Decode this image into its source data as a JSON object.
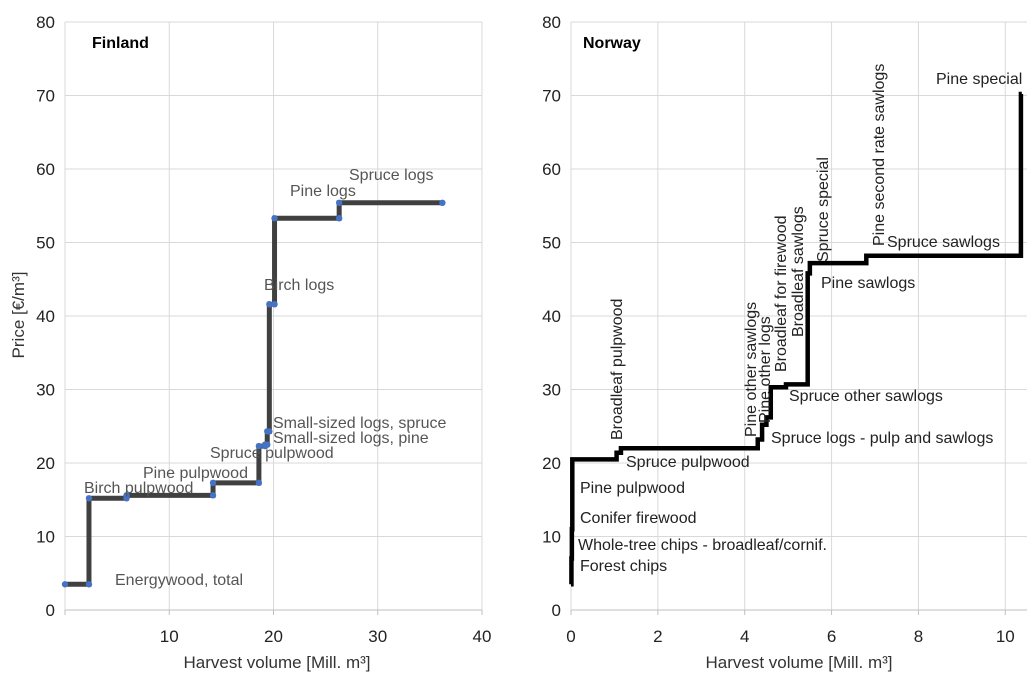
{
  "chart_data": [
    {
      "type": "line",
      "step": true,
      "title": "Finland",
      "xlabel": "Harvest volume [Mill. m³]",
      "ylabel": "Price [€/m³]",
      "xlim": [
        0,
        40
      ],
      "ylim": [
        0,
        80
      ],
      "xticks": [
        0,
        10,
        20,
        30,
        40
      ],
      "xtick_labels": [
        "",
        "10",
        "20",
        "30",
        "40"
      ],
      "yticks": [
        0,
        10,
        20,
        30,
        40,
        50,
        60,
        70,
        80
      ],
      "grid": true,
      "line_color": "#404040",
      "marker_color": "#4472c4",
      "steps": [
        {
          "label": "Energywood, total",
          "x0": 0.0,
          "x1": 2.3,
          "y": 3.5
        },
        {
          "label": "Birch pulpwood",
          "x0": 2.3,
          "x1": 5.9,
          "y": 15.2
        },
        {
          "label": "",
          "x0": 5.9,
          "x1": 14.2,
          "y": 15.6
        },
        {
          "label": "Pine pulpwood",
          "x0": 14.2,
          "x1": 18.6,
          "y": 17.3
        },
        {
          "label": "Spruce pulpwood",
          "x0": 18.6,
          "x1": 19.2,
          "y": 22.3
        },
        {
          "label": "Small-sized logs, pine",
          "x0": 19.2,
          "x1": 19.4,
          "y": 22.5
        },
        {
          "label": "Small-sized logs, spruce",
          "x0": 19.4,
          "x1": 19.6,
          "y": 24.3
        },
        {
          "label": "Birch logs",
          "x0": 19.6,
          "x1": 20.1,
          "y": 41.6
        },
        {
          "label": "Pine logs",
          "x0": 20.1,
          "x1": 26.3,
          "y": 53.3
        },
        {
          "label": "Spruce logs",
          "x0": 26.3,
          "x1": 36.2,
          "y": 55.4
        }
      ]
    },
    {
      "type": "line",
      "step": true,
      "title": "Norway",
      "xlabel": "Harvest volume [Mill. m³]",
      "ylabel": "",
      "xlim": [
        0,
        10.5
      ],
      "ylim": [
        0,
        80
      ],
      "xticks": [
        0,
        2,
        4,
        6,
        8,
        10
      ],
      "xtick_labels": [
        "0",
        "2",
        "4",
        "6",
        "8",
        "10"
      ],
      "yticks": [
        0,
        10,
        20,
        30,
        40,
        50,
        60,
        70,
        80
      ],
      "grid": true,
      "line_color": "#000000",
      "steps": [
        {
          "label": "Forest chips",
          "x0": 0.0,
          "x1": 0.01,
          "y": 3.5
        },
        {
          "label": "Whole-tree chips - broadleaf/cornif.",
          "x0": 0.01,
          "x1": 0.02,
          "y": 7.0
        },
        {
          "label": "Conifer firewood",
          "x0": 0.02,
          "x1": 0.03,
          "y": 11.0
        },
        {
          "label": "Pine pulpwood",
          "x0": 0.03,
          "x1": 1.05,
          "y": 20.5
        },
        {
          "label": "Broadleaf pulpwood",
          "x0": 1.05,
          "x1": 1.15,
          "y": 21.4
        },
        {
          "label": "Spruce pulpwood",
          "x0": 1.15,
          "x1": 4.3,
          "y": 22.0
        },
        {
          "label": "Spruce logs - pulp and sawlogs",
          "x0": 4.3,
          "x1": 4.4,
          "y": 23.2
        },
        {
          "label": "Pine other sawlogs",
          "x0": 4.4,
          "x1": 4.5,
          "y": 25.2
        },
        {
          "label": "Pine other logs",
          "x0": 4.5,
          "x1": 4.6,
          "y": 26.2
        },
        {
          "label": "Broadleaf for firewood",
          "x0": 4.6,
          "x1": 4.95,
          "y": 30.3
        },
        {
          "label": "Spruce other sawlogs",
          "x0": 4.95,
          "x1": 5.45,
          "y": 30.7
        },
        {
          "label": "Broadleaf sawlogs",
          "x0": 5.45,
          "x1": 5.5,
          "y": 45.8
        },
        {
          "label": "Pine sawlogs",
          "x0": 5.5,
          "x1": 6.75,
          "y": 47.2
        },
        {
          "label": "Spruce special",
          "x0": 6.75,
          "x1": 6.8,
          "y": 47.2
        },
        {
          "label": "Spruce sawlogs",
          "x0": 6.8,
          "x1": 10.35,
          "y": 48.2
        },
        {
          "label": "Pine second rate sawlogs",
          "x0": 10.35,
          "x1": 10.36,
          "y": 48.2
        },
        {
          "label": "Pine special",
          "x0": 10.36,
          "x1": 10.38,
          "y": 70.2
        }
      ]
    }
  ]
}
